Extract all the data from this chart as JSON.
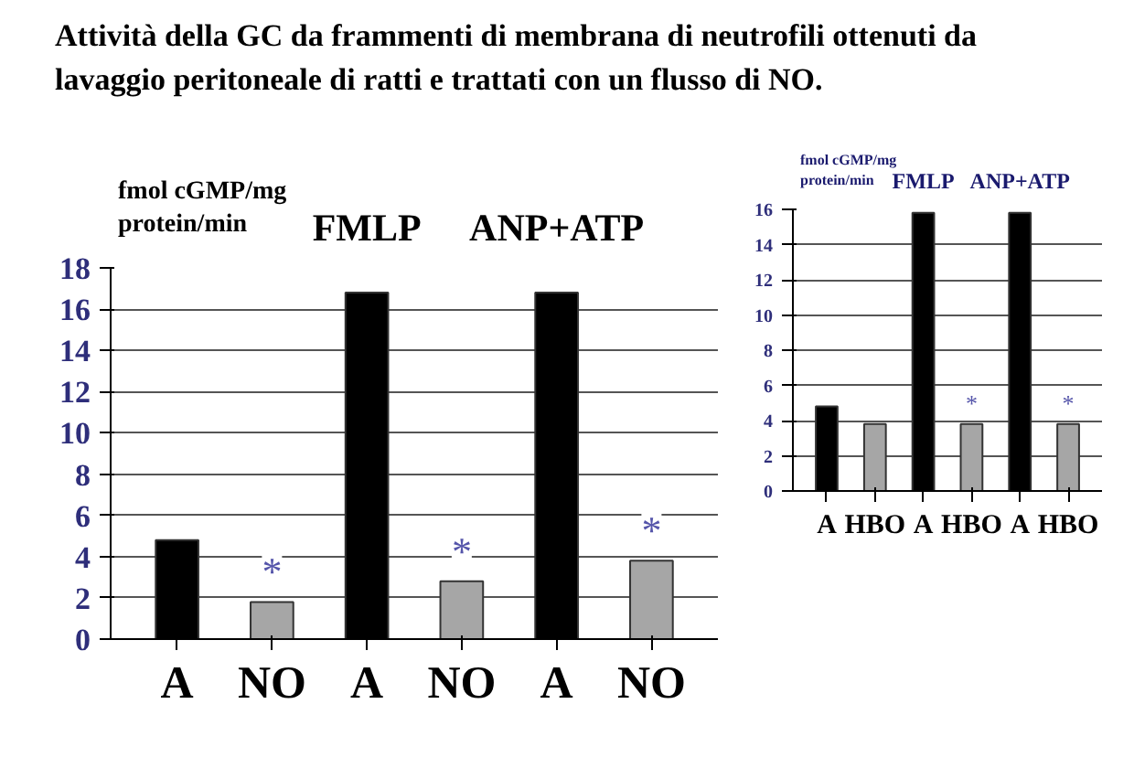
{
  "chart_data": [
    {
      "type": "bar",
      "title": "Attività della GC da frammenti di membrana di neutrofili ottenuti da lavaggio peritoneale di ratti e trattati con un flusso di NO.",
      "ylabel": "fmol cGMP/mg protein/min",
      "categories": [
        "A",
        "NO",
        "A",
        "NO",
        "A",
        "NO"
      ],
      "values": [
        4.8,
        1.8,
        16.8,
        2.8,
        16.8,
        3.8
      ],
      "colors": [
        "#000000",
        "#a6a6a6",
        "#000000",
        "#a6a6a6",
        "#000000",
        "#a6a6a6"
      ],
      "value_labels": [
        null,
        "*",
        null,
        "*",
        null,
        "*"
      ],
      "annotations": [
        "FMLP",
        "ANP+ATP"
      ],
      "ylim": [
        0,
        18
      ],
      "yticks": [
        0,
        2,
        4,
        6,
        8,
        10,
        12,
        14,
        16,
        18
      ],
      "grid": "y"
    },
    {
      "type": "bar",
      "ylabel": "fmol cGMP/mg protein/min",
      "categories": [
        "A",
        "HBO",
        "A",
        "HBO",
        "A",
        "HBO"
      ],
      "values": [
        4.8,
        3.8,
        15.8,
        3.8,
        15.8,
        3.8
      ],
      "colors": [
        "#000000",
        "#a6a6a6",
        "#000000",
        "#a6a6a6",
        "#000000",
        "#a6a6a6"
      ],
      "value_labels": [
        null,
        null,
        null,
        "*",
        null,
        "*"
      ],
      "annotations": [
        "FMLP",
        "ANP+ATP"
      ],
      "ylim": [
        0,
        16
      ],
      "yticks": [
        0,
        2,
        4,
        6,
        8,
        10,
        12,
        14,
        16
      ],
      "grid": "y"
    }
  ]
}
